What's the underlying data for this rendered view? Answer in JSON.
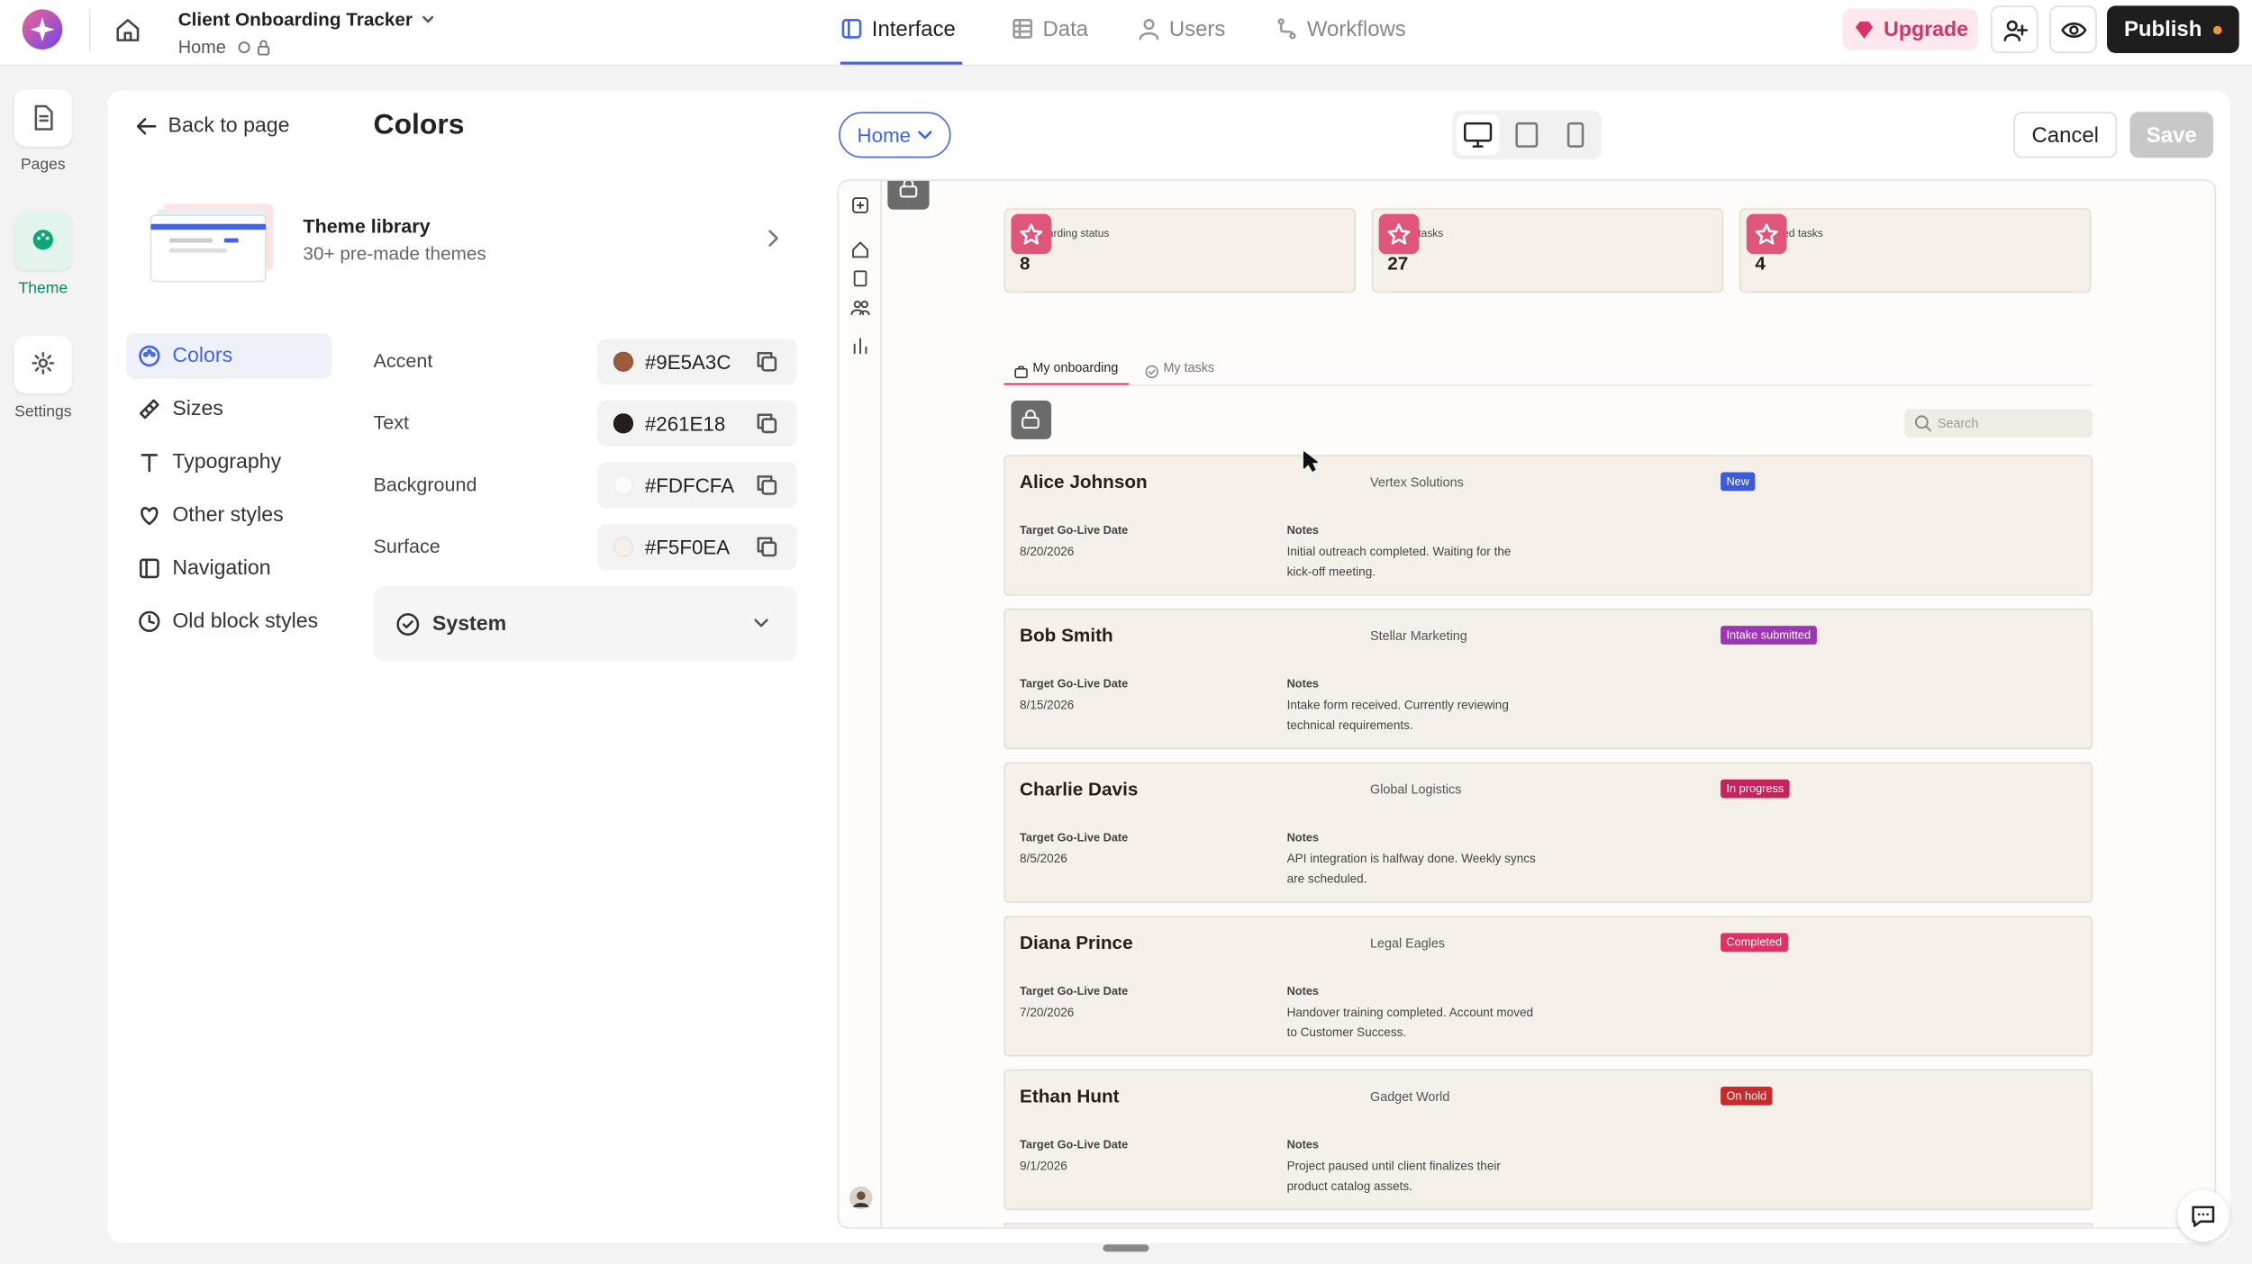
{
  "app": {
    "title": "Client Onboarding Tracker",
    "breadcrumb": "Home"
  },
  "tabs": [
    "Interface",
    "Data",
    "Users",
    "Workflows"
  ],
  "actions": {
    "upgrade": "Upgrade",
    "publish": "Publish"
  },
  "rail": [
    "Pages",
    "Theme",
    "Settings"
  ],
  "panel": {
    "back": "Back to page",
    "title": "Colors",
    "library": {
      "title": "Theme library",
      "subtitle": "30+ pre-made themes"
    },
    "menu": [
      "Colors",
      "Sizes",
      "Typography",
      "Other styles",
      "Navigation",
      "Old block styles"
    ],
    "colors": [
      {
        "label": "Accent",
        "value": "#9E5A3C"
      },
      {
        "label": "Text",
        "value": "#261E18"
      },
      {
        "label": "Background",
        "value": "#FDFCFA"
      },
      {
        "label": "Surface",
        "value": "#F5F0EA"
      }
    ],
    "system": "System"
  },
  "preview": {
    "page": "Home",
    "cancel": "Cancel",
    "save": "Save",
    "stats": [
      {
        "label": "Onboarding status",
        "value": 8
      },
      {
        "label": "Open tasks",
        "value": 27
      },
      {
        "label": "Blocked tasks",
        "value": 4
      }
    ],
    "tabs": [
      "My onboarding",
      "My tasks"
    ],
    "search": "Search",
    "fields": {
      "date": "Target Go-Live Date",
      "notes": "Notes"
    },
    "records": [
      {
        "name": "Alice Johnson",
        "company": "Vertex Solutions",
        "status": "New",
        "status_color": "#3b5bdb",
        "date": "8/20/2026",
        "notes": "Initial outreach completed. Waiting for the kick-off meeting."
      },
      {
        "name": "Bob Smith",
        "company": "Stellar Marketing",
        "status": "Intake submitted",
        "status_color": "#9c36b5",
        "date": "8/15/2026",
        "notes": "Intake form received. Currently reviewing technical requirements."
      },
      {
        "name": "Charlie Davis",
        "company": "Global Logistics",
        "status": "In progress",
        "status_color": "#c2255c",
        "date": "8/5/2026",
        "notes": "API integration is halfway done. Weekly syncs are scheduled."
      },
      {
        "name": "Diana Prince",
        "company": "Legal Eagles",
        "status": "Completed",
        "status_color": "#e03163",
        "date": "7/20/2026",
        "notes": "Handover training completed. Account moved to Customer Success."
      },
      {
        "name": "Ethan Hunt",
        "company": "Gadget World",
        "status": "On hold",
        "status_color": "#c92a2a",
        "date": "9/1/2026",
        "notes": "Project paused until client finalizes their product catalog assets."
      }
    ]
  }
}
